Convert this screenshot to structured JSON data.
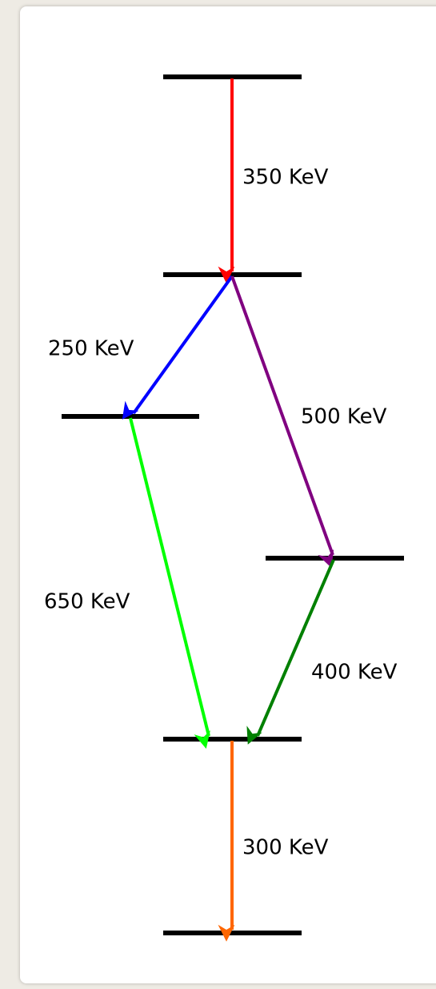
{
  "transitions": [
    {
      "label": "350 KeV"
    },
    {
      "label": "250 KeV"
    },
    {
      "label": "500 KeV"
    },
    {
      "label": "650 KeV"
    },
    {
      "label": "400 KeV"
    },
    {
      "label": "300 KeV"
    }
  ]
}
